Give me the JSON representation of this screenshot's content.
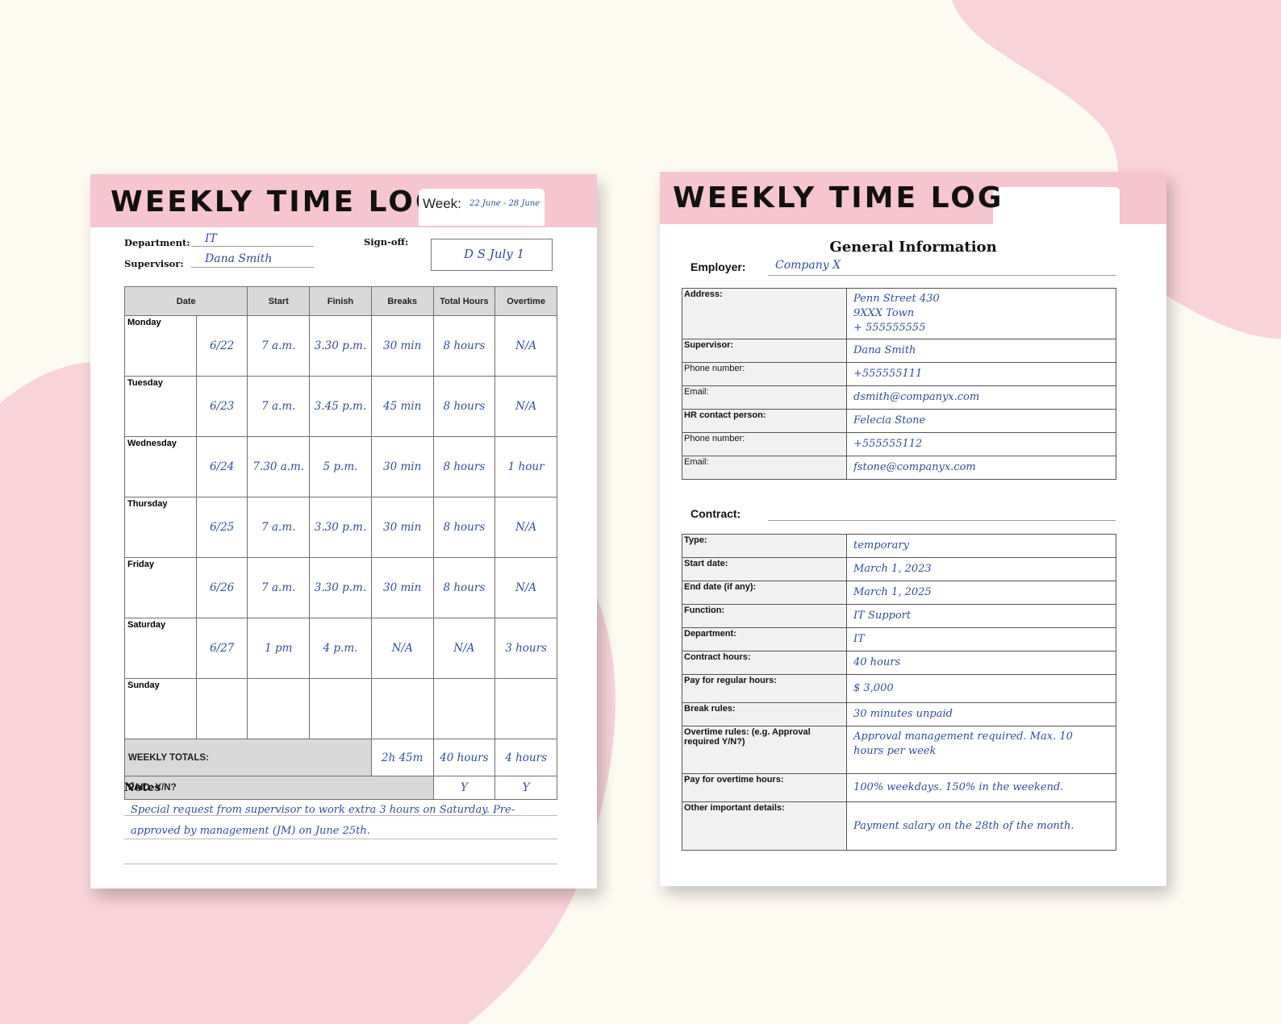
{
  "colors": {
    "accent_pink": "#f5c6cf",
    "ink_blue": "#2d4e9f",
    "header_grey": "#d9d9d9",
    "background": "#fdfaf2"
  },
  "left_page": {
    "title": "WEEKLY TIME LOG",
    "week_label": "Week:",
    "week_value": "22 June - 28 June",
    "department_label": "Department:",
    "department_value": "IT",
    "supervisor_label": "Supervisor:",
    "supervisor_value": "Dana Smith",
    "signoff_label": "Sign-off:",
    "signoff_value": "D S  July 1",
    "columns": [
      "Date",
      "Start",
      "Finish",
      "Breaks",
      "Total Hours",
      "Overtime"
    ],
    "rows": [
      {
        "day": "Monday",
        "date": "6/22",
        "start": "7 a.m.",
        "finish": "3.30 p.m.",
        "breaks": "30 min",
        "total": "8 hours",
        "overtime": "N/A"
      },
      {
        "day": "Tuesday",
        "date": "6/23",
        "start": "7 a.m.",
        "finish": "3.45 p.m.",
        "breaks": "45 min",
        "total": "8 hours",
        "overtime": "N/A"
      },
      {
        "day": "Wednesday",
        "date": "6/24",
        "start": "7.30 a.m.",
        "finish": "5 p.m.",
        "breaks": "30 min",
        "total": "8 hours",
        "overtime": "1 hour"
      },
      {
        "day": "Thursday",
        "date": "6/25",
        "start": "7 a.m.",
        "finish": "3.30 p.m.",
        "breaks": "30 min",
        "total": "8 hours",
        "overtime": "N/A"
      },
      {
        "day": "Friday",
        "date": "6/26",
        "start": "7 a.m.",
        "finish": "3.30 p.m.",
        "breaks": "30 min",
        "total": "8 hours",
        "overtime": "N/A"
      },
      {
        "day": "Saturday",
        "date": "6/27",
        "start": "1 pm",
        "finish": "4 p.m.",
        "breaks": "N/A",
        "total": "N/A",
        "overtime": "3 hours"
      },
      {
        "day": "Sunday",
        "date": "",
        "start": "",
        "finish": "",
        "breaks": "",
        "total": "",
        "overtime": ""
      }
    ],
    "weekly_totals_label": "WEEKLY TOTALS:",
    "weekly_totals": {
      "breaks": "2h 45m",
      "total": "40 hours",
      "overtime": "4 hours"
    },
    "paid_label": "PAID: Y/N?",
    "paid": {
      "total": "Y",
      "overtime": "Y"
    },
    "notes_label": "Notes",
    "notes_line1": "Special request from supervisor to work extra 3 hours on Saturday. Pre-",
    "notes_line2": "approved by management (JM) on June 25th."
  },
  "right_page": {
    "title": "WEEKLY TIME LOG",
    "section_title": "General Information",
    "employer_label": "Employer:",
    "employer_value": "Company X",
    "general_rows": [
      {
        "label": "Address:",
        "lines": [
          "Penn Street 430",
          "9XXX Town",
          "+ 555555555"
        ]
      },
      {
        "label": "Supervisor:",
        "lines": [
          "Dana Smith"
        ]
      },
      {
        "label": "Phone number:",
        "lines": [
          "+555555111"
        ]
      },
      {
        "label": "Email:",
        "lines": [
          "dsmith@companyx.com"
        ]
      },
      {
        "label": "HR contact person:",
        "lines": [
          "Felecia Stone"
        ]
      },
      {
        "label": "Phone number:",
        "lines": [
          "+555555112"
        ]
      },
      {
        "label": "Email:",
        "lines": [
          "fstone@companyx.com"
        ]
      }
    ],
    "contract_label": "Contract:",
    "contract_rows": [
      {
        "label": "Type:",
        "lines": [
          "temporary"
        ]
      },
      {
        "label": "Start date:",
        "lines": [
          "March 1, 2023"
        ]
      },
      {
        "label": "End date (if any):",
        "lines": [
          "March 1, 2025"
        ]
      },
      {
        "label": "Function:",
        "lines": [
          "IT Support"
        ]
      },
      {
        "label": "Department:",
        "lines": [
          "IT"
        ]
      },
      {
        "label": "Contract hours:",
        "lines": [
          "40 hours"
        ]
      },
      {
        "label": "Pay for regular hours:",
        "lines": [
          "$ 3,000"
        ]
      },
      {
        "label": "Break rules:",
        "lines": [
          "30 minutes  unpaid"
        ]
      },
      {
        "label": "Overtime rules: (e.g. Approval required Y/N?)",
        "lines": [
          "Approval management required. Max. 10",
          "hours per week"
        ]
      },
      {
        "label": "Pay for overtime hours:",
        "lines": [
          "100% weekdays. 150% in the weekend."
        ]
      },
      {
        "label": "Other important details:",
        "lines": [
          "Payment salary on the 28th of the month."
        ]
      }
    ]
  }
}
